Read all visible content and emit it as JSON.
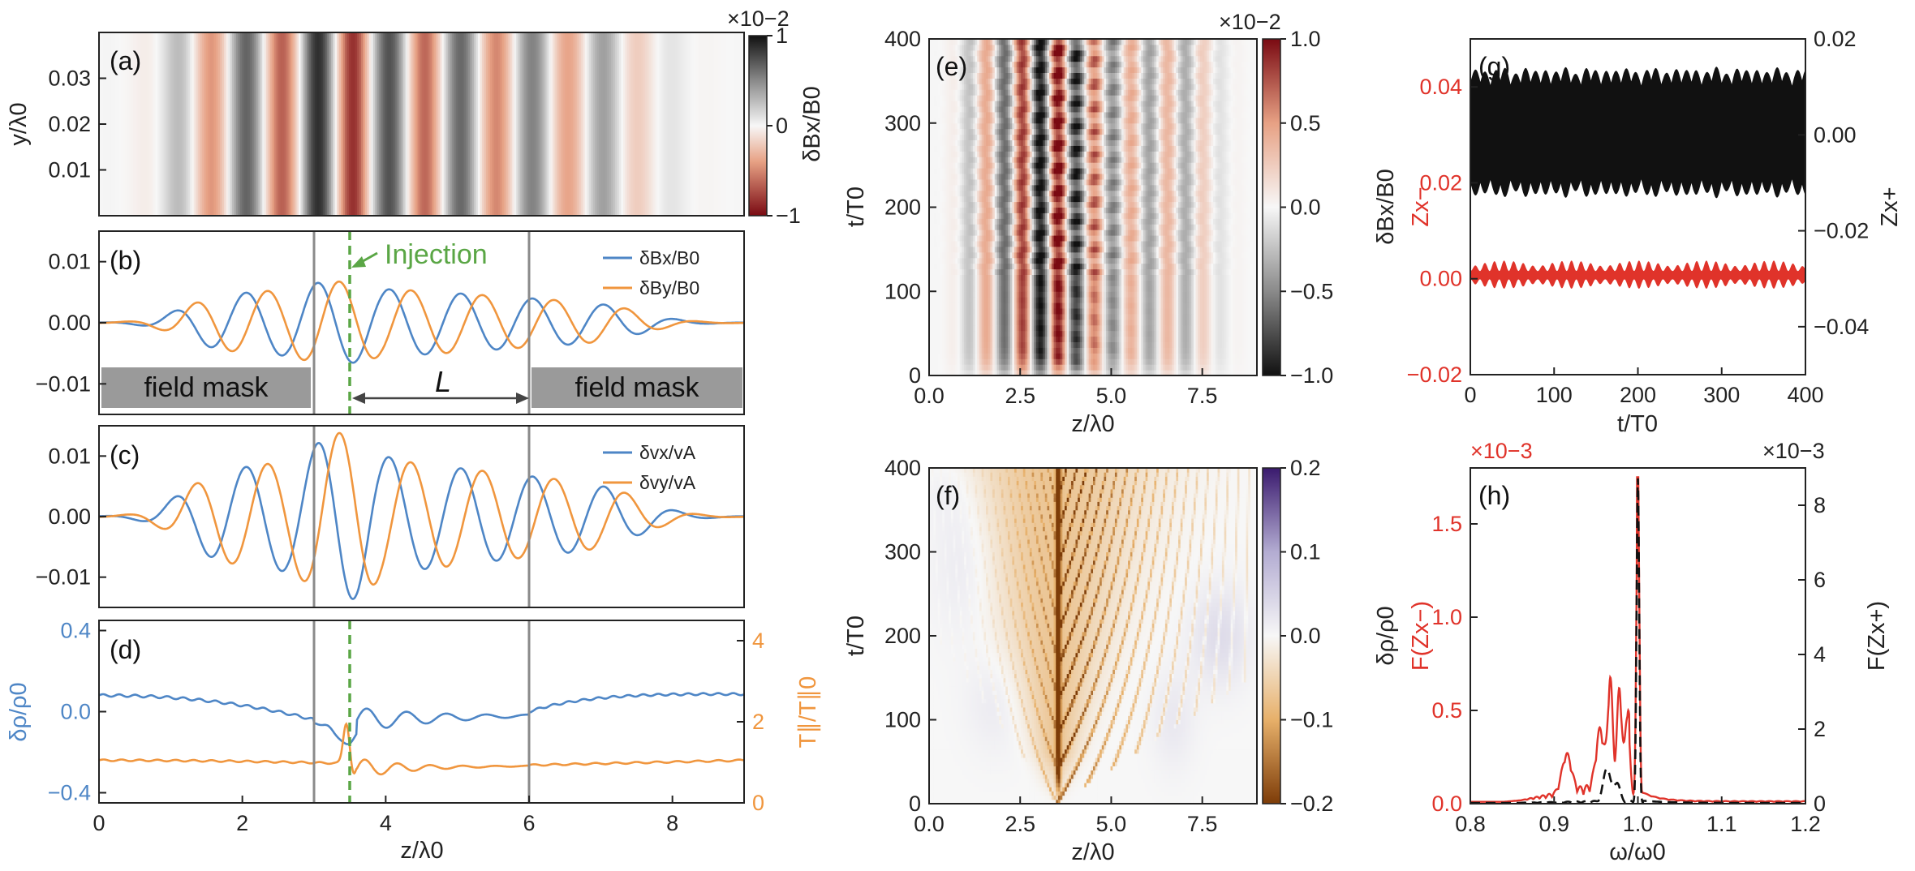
{
  "figure": {
    "colors": {
      "blue": "#4e86c6",
      "orange": "#f0963e",
      "red": "#e0332a",
      "green": "#5aa645",
      "gray": "#9a9a9a",
      "black": "#111111"
    }
  },
  "chart_data": [
    {
      "id": "a",
      "panel_label": "(a)",
      "type": "heatmap",
      "xlabel": "",
      "ylabel": "y/λ0",
      "xlim": [
        0,
        9
      ],
      "ylim": [
        0,
        0.04
      ],
      "yticks": [
        "0.01",
        "0.02",
        "0.03"
      ],
      "colorbar": {
        "label": "δBx/B0",
        "multiplier": "×10−2",
        "ticks": [
          "1",
          "0",
          "−1"
        ],
        "range": [
          -1,
          1
        ]
      },
      "description_value": "δBx/B0 stripes uniform in y, wavelength λ0, envelope peaking near z=3.3"
    },
    {
      "id": "b",
      "panel_label": "(b)",
      "type": "line",
      "xlim": [
        0,
        9
      ],
      "ylim": [
        -0.015,
        0.015
      ],
      "yticks": [
        "0.01",
        "0.00",
        "−0.01"
      ],
      "series": [
        {
          "name": "δBx/B0",
          "color": "#4e86c6",
          "phase": 0,
          "amplitude": 0.0075
        },
        {
          "name": "δBy/B0",
          "color": "#f0963e",
          "phase": 1.5708,
          "amplitude": 0.0075
        }
      ],
      "annotations": {
        "injection": "Injection",
        "mask_left": "field mask",
        "mask_right": "field mask",
        "length": "L"
      },
      "vlines": [
        3,
        6
      ],
      "injection_z": 3.5
    },
    {
      "id": "c",
      "panel_label": "(c)",
      "type": "line",
      "xlim": [
        0,
        9
      ],
      "ylim": [
        -0.015,
        0.015
      ],
      "yticks": [
        "0.01",
        "0.00",
        "−0.01"
      ],
      "series": [
        {
          "name": "δvx/vA",
          "color": "#4e86c6",
          "phase": 0,
          "amplitude": 0.0125
        },
        {
          "name": "δvy/vA",
          "color": "#f0963e",
          "phase": 1.5708,
          "amplitude": 0.0125
        }
      ],
      "vlines": [
        3,
        6
      ],
      "injection_z": 3.5
    },
    {
      "id": "d",
      "panel_label": "(d)",
      "type": "line",
      "xlabel": "z/λ0",
      "ylabel": "δρ/ρ0",
      "ylabel_right": "T∥/T∥0",
      "xlim": [
        0,
        9
      ],
      "ylim": [
        -0.45,
        0.45
      ],
      "ylim_right": [
        0,
        4.5
      ],
      "xticks": [
        "0",
        "2",
        "4",
        "6",
        "8"
      ],
      "yticks": [
        "0.4",
        "0.0",
        "−0.4"
      ],
      "yticks_right": [
        "4",
        "2",
        "0"
      ],
      "series": [
        {
          "name": "δρ/ρ0",
          "color": "#4e86c6",
          "axis": "left"
        },
        {
          "name": "T∥/T∥0",
          "color": "#f0963e",
          "axis": "right"
        }
      ],
      "vlines": [
        3,
        6
      ],
      "injection_z": 3.5
    },
    {
      "id": "e",
      "panel_label": "(e)",
      "type": "heatmap",
      "xlabel": "z/λ0",
      "ylabel": "t/T0",
      "xlim": [
        0,
        9
      ],
      "ylim": [
        0,
        400
      ],
      "xticks": [
        "0.0",
        "2.5",
        "5.0",
        "7.5"
      ],
      "yticks": [
        "0",
        "100",
        "200",
        "300",
        "400"
      ],
      "colorbar": {
        "label": "δBx/B0",
        "multiplier": "×10−2",
        "ticks": [
          "1.0",
          "0.5",
          "0.0",
          "−0.5",
          "−1.0"
        ],
        "range": [
          -1,
          1
        ]
      }
    },
    {
      "id": "f",
      "panel_label": "(f)",
      "type": "heatmap",
      "xlabel": "z/λ0",
      "ylabel": "t/T0",
      "xlim": [
        0,
        9
      ],
      "ylim": [
        0,
        400
      ],
      "xticks": [
        "0.0",
        "2.5",
        "5.0",
        "7.5"
      ],
      "yticks": [
        "0",
        "100",
        "200",
        "300",
        "400"
      ],
      "colorbar": {
        "label": "δρ/ρ0",
        "ticks": [
          "0.2",
          "0.1",
          "0.0",
          "−0.1",
          "−0.2"
        ],
        "range": [
          -0.2,
          0.2
        ]
      }
    },
    {
      "id": "g",
      "panel_label": "(g)",
      "type": "line",
      "xlabel": "t/T0",
      "ylabel": "Zx−",
      "ylabel_right": "Zx+",
      "xlim": [
        0,
        400
      ],
      "ylim": [
        -0.02,
        0.05
      ],
      "ylim_right": [
        -0.05,
        0.02
      ],
      "xticks": [
        "0",
        "100",
        "200",
        "300",
        "400"
      ],
      "yticks": [
        "0.04",
        "0.02",
        "0.00",
        "−0.02"
      ],
      "yticks_right": [
        "0.02",
        "0.00",
        "−0.02",
        "−0.04"
      ],
      "series": [
        {
          "name": "Zx+",
          "color": "#111111",
          "axis": "right",
          "center": 0.0,
          "amplitude": 0.012
        },
        {
          "name": "Zx−",
          "color": "#e0332a",
          "axis": "left",
          "center": 0.0,
          "amplitude": 0.0015
        }
      ]
    },
    {
      "id": "h",
      "panel_label": "(h)",
      "type": "line",
      "xlabel": "ω/ω0",
      "ylabel": "F(Zx−)",
      "ylabel_right": "F(Zx+)",
      "multiplier_left": "×10−3",
      "multiplier_right": "×10−3",
      "xlim": [
        0.8,
        1.2
      ],
      "ylim": [
        0,
        1.8
      ],
      "ylim_right": [
        0,
        9
      ],
      "xticks": [
        "0.8",
        "0.9",
        "1.0",
        "1.1",
        "1.2"
      ],
      "yticks": [
        "1.5",
        "1.0",
        "0.5",
        "0.0"
      ],
      "yticks_right": [
        "8",
        "6",
        "4",
        "2",
        "0"
      ],
      "series": [
        {
          "name": "F(Zx−)",
          "color": "#e0332a",
          "style": "solid",
          "peak_omega": 1.0,
          "peak": 1.75
        },
        {
          "name": "F(Zx+)",
          "color": "#111111",
          "style": "dashed",
          "peak_omega": 1.0,
          "peak": 8.7
        }
      ]
    }
  ]
}
